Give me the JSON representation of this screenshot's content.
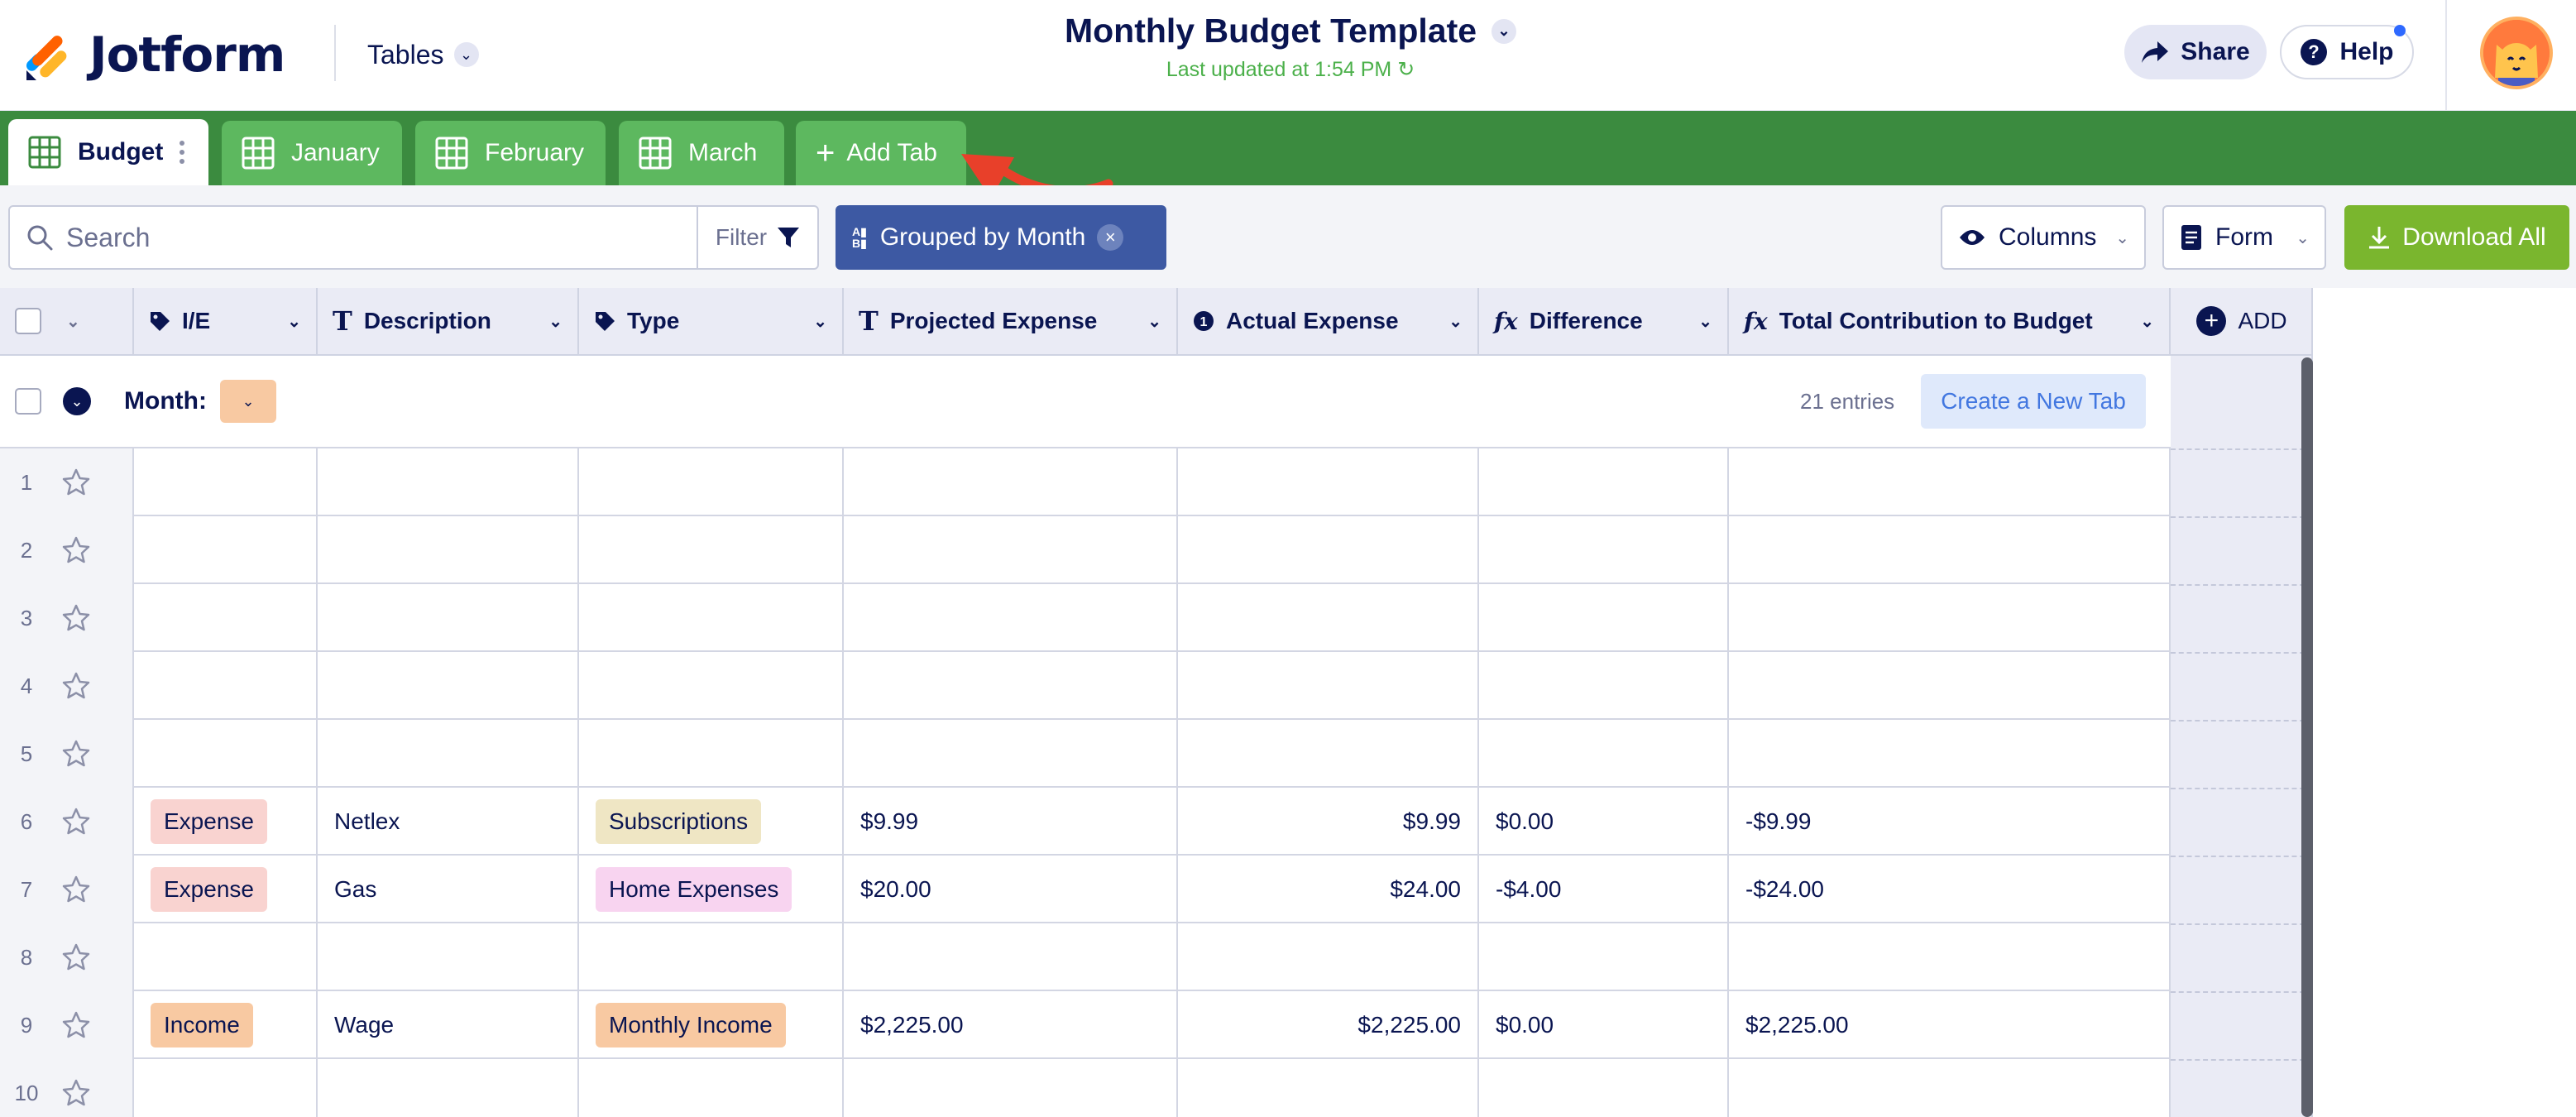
{
  "header": {
    "logo_text": "Jotform",
    "tables_label": "Tables",
    "doc_title": "Monthly Budget Template",
    "last_updated": "Last updated at 1:54 PM",
    "share_label": "Share",
    "help_label": "Help"
  },
  "tabs": [
    {
      "label": "Budget",
      "active": true
    },
    {
      "label": "January",
      "active": false
    },
    {
      "label": "February",
      "active": false
    },
    {
      "label": "March",
      "active": false
    }
  ],
  "add_tab_label": "Add Tab",
  "toolbar": {
    "search_placeholder": "Search",
    "filter_label": "Filter",
    "group_chip_label": "Grouped by Month",
    "columns_label": "Columns",
    "form_label": "Form",
    "download_label": "Download All"
  },
  "columns": [
    {
      "label": "I/E",
      "icon": "tag-icon"
    },
    {
      "label": "Description",
      "icon": "text-icon"
    },
    {
      "label": "Type",
      "icon": "tag-icon"
    },
    {
      "label": "Projected Expense",
      "icon": "text-icon"
    },
    {
      "label": "Actual Expense",
      "icon": "info-icon"
    },
    {
      "label": "Difference",
      "icon": "fx-icon"
    },
    {
      "label": "Total Contribution to Budget",
      "icon": "fx-icon"
    }
  ],
  "add_column_label": "ADD",
  "group": {
    "label": "Month:",
    "entries": "21 entries",
    "create_tab_label": "Create a New Tab"
  },
  "rows": [
    {
      "n": "1",
      "ie": "",
      "desc": "",
      "type": "",
      "proj": "",
      "actual": "",
      "diff": "",
      "total": ""
    },
    {
      "n": "2",
      "ie": "",
      "desc": "",
      "type": "",
      "proj": "",
      "actual": "",
      "diff": "",
      "total": ""
    },
    {
      "n": "3",
      "ie": "",
      "desc": "",
      "type": "",
      "proj": "",
      "actual": "",
      "diff": "",
      "total": ""
    },
    {
      "n": "4",
      "ie": "",
      "desc": "",
      "type": "",
      "proj": "",
      "actual": "",
      "diff": "",
      "total": ""
    },
    {
      "n": "5",
      "ie": "",
      "desc": "",
      "type": "",
      "proj": "",
      "actual": "",
      "diff": "",
      "total": ""
    },
    {
      "n": "6",
      "ie": "Expense",
      "desc": "Netlex",
      "type": "Subscriptions",
      "proj": "$9.99",
      "actual": "$9.99",
      "diff": "$0.00",
      "total": "-$9.99"
    },
    {
      "n": "7",
      "ie": "Expense",
      "desc": "Gas",
      "type": "Home Expenses",
      "proj": "$20.00",
      "actual": "$24.00",
      "diff": "-$4.00",
      "total": "-$24.00"
    },
    {
      "n": "8",
      "ie": "",
      "desc": "",
      "type": "",
      "proj": "",
      "actual": "",
      "diff": "",
      "total": ""
    },
    {
      "n": "9",
      "ie": "Income",
      "desc": "Wage",
      "type": "Monthly Income",
      "proj": "$2,225.00",
      "actual": "$2,225.00",
      "diff": "$0.00",
      "total": "$2,225.00"
    },
    {
      "n": "10",
      "ie": "",
      "desc": "",
      "type": "",
      "proj": "",
      "actual": "",
      "diff": "",
      "total": ""
    }
  ],
  "colors": {
    "brand_navy": "#0a1551",
    "tabbar_green": "#3b8b3f",
    "tab_green": "#5db85f",
    "download_green": "#7ab62e",
    "group_chip_blue": "#3d59a3",
    "arrow_red": "#e8402a",
    "tag_expense": "#f9d3d0",
    "tag_income": "#f8c9a2",
    "tag_subscriptions": "#efe6c4",
    "tag_home_expenses": "#f8d4f0",
    "tag_monthly_income": "#f8c9a2"
  },
  "tag_colors": {
    "Expense": "#f9d3d0",
    "Income": "#f8c9a2",
    "Subscriptions": "#efe6c4",
    "Home Expenses": "#f8d4f0",
    "Monthly Income": "#f8c9a2"
  }
}
